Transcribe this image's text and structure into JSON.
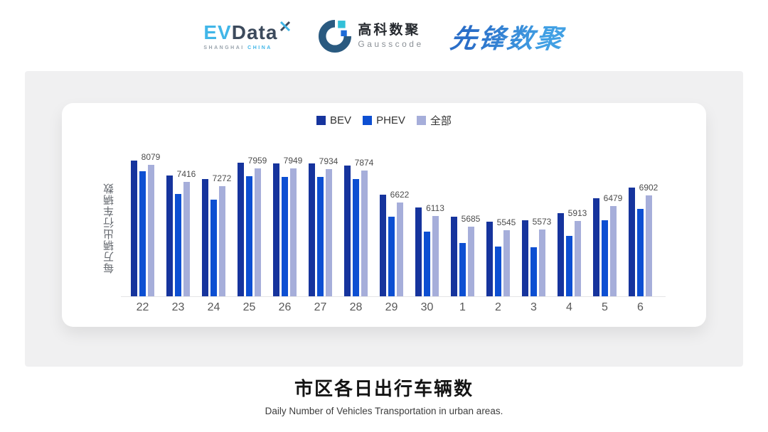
{
  "header": {
    "evdata": {
      "ev": "EV",
      "data": "Data",
      "sub_left": "SHANGHAI",
      "sub_right": "CHINA"
    },
    "gausscode": {
      "cn": "高科数聚",
      "en": "Gausscode"
    },
    "xianfeng": {
      "text": "先锋数聚"
    }
  },
  "brand_colors": {
    "evdata_cyan": "#41b6e8",
    "evdata_dark": "#3c4a5c",
    "gauss_dark": "#2a5a80",
    "gauss_cyan": "#32c0d8",
    "gauss_blue": "#1d6bd8",
    "xianfeng_blue": "#2e7bd0"
  },
  "chart_data": {
    "type": "bar",
    "title": "市区各日出行车辆数",
    "subtitle": "Daily Number of Vehicles Transportation in urban areas.",
    "ylabel": "每万辆出行车辆数",
    "xlabel": "",
    "categories": [
      "22",
      "23",
      "24",
      "25",
      "26",
      "27",
      "28",
      "29",
      "30",
      "1",
      "2",
      "3",
      "4",
      "5",
      "6"
    ],
    "series": [
      {
        "key": "bev",
        "name": "BEV",
        "color": "#16349d",
        "labeled": false,
        "values": [
          8240,
          7680,
          7550,
          8160,
          8130,
          8150,
          8050,
          6930,
          6450,
          6070,
          5900,
          5930,
          6220,
          6790,
          7210
        ]
      },
      {
        "key": "phev",
        "name": "PHEV",
        "color": "#0d4fd2",
        "labeled": false,
        "values": [
          7850,
          6970,
          6750,
          7640,
          7610,
          7620,
          7550,
          6090,
          5500,
          5070,
          4920,
          4900,
          5340,
          5930,
          6370
        ]
      },
      {
        "key": "all",
        "name": "全部",
        "color": "#a6aeda",
        "labeled": true,
        "values": [
          8079,
          7416,
          7272,
          7959,
          7949,
          7934,
          7874,
          6622,
          6113,
          5685,
          5545,
          5573,
          5913,
          6479,
          6902
        ]
      }
    ],
    "data_labels": [
      8079,
      7416,
      7272,
      7959,
      7949,
      7934,
      7874,
      6622,
      6113,
      5685,
      5545,
      5573,
      5913,
      6479,
      6902
    ],
    "ylim": [
      3000,
      8500
    ],
    "grid": false,
    "legend_position": "top",
    "axis_line_color": "#e4e4e6"
  }
}
